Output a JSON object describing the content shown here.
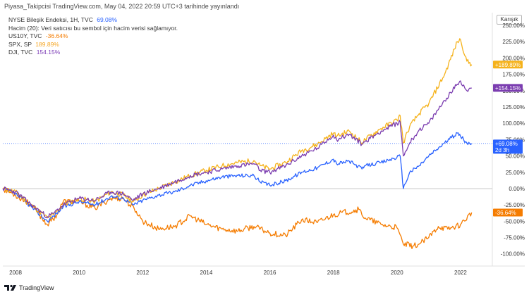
{
  "header": {
    "text": "Piyasa_Takipcisi TradingView.com, May 04, 2022 20:59 UTC+3 tarihinde yayınlandı"
  },
  "legend": {
    "rows": [
      {
        "label": "NYSE Bileşik Endeksi, 1H, TVC",
        "value": "69.08%",
        "color": "#2962ff"
      },
      {
        "label": "Hacim (20): Veri satıcısı bu sembol için hacim verisi sağlamıyor.",
        "value": "",
        "color": "#333333"
      },
      {
        "label": "US10Y, TVC",
        "value": "-36.64%",
        "color": "#f57c00"
      },
      {
        "label": "SPX, SP",
        "value": "189.89%",
        "color": "#f5a623"
      },
      {
        "label": "DJI, TVC",
        "value": "154.15%",
        "color": "#7e3fb8"
      }
    ]
  },
  "scale_mode": "Karışık",
  "footer": {
    "brand": "TradingView"
  },
  "colors": {
    "nya": "#2962ff",
    "us10y": "#f57c00",
    "spx": "#f5b21b",
    "dji": "#7b3db0",
    "zero_line": "#c8c8c8",
    "last_line": "#2962ff"
  },
  "tags": [
    {
      "series": "spx",
      "text": "+189.89%",
      "value": 189.89
    },
    {
      "series": "dji",
      "text": "+154.15%",
      "value": 154.15
    },
    {
      "series": "nya",
      "text": "+69.08%",
      "sub": "2d 3h",
      "value": 69.08
    },
    {
      "series": "us10y",
      "text": "-36.64%",
      "value": -36.64
    }
  ],
  "chart_data": {
    "type": "line",
    "title": "",
    "xlabel": "",
    "ylabel": "",
    "unit": "%",
    "xlim": [
      2007.6,
      2023.0
    ],
    "ylim": [
      -110,
      250
    ],
    "x_ticks": [
      "2008",
      "2010",
      "2012",
      "2014",
      "2016",
      "2018",
      "2020",
      "2022"
    ],
    "y_ticks": [
      "250.00%",
      "225.00%",
      "200.00%",
      "175.00%",
      "150.00%",
      "125.00%",
      "100.00%",
      "75.00%",
      "50.00%",
      "25.00%",
      "0.00%",
      "-25.00%",
      "-50.00%",
      "-75.00%",
      "-100.00%"
    ],
    "y_tick_values": [
      250,
      225,
      200,
      175,
      150,
      125,
      100,
      75,
      50,
      25,
      0,
      -25,
      -50,
      -75,
      -100
    ],
    "series": [
      {
        "key": "spx",
        "name": "SPX, SP",
        "x": [
          2007.6,
          2008.0,
          2008.5,
          2009.0,
          2009.2,
          2009.5,
          2010.0,
          2010.5,
          2011.0,
          2011.4,
          2011.7,
          2012.0,
          2012.5,
          2013.0,
          2013.5,
          2014.0,
          2014.5,
          2015.0,
          2015.5,
          2015.7,
          2016.0,
          2016.5,
          2017.0,
          2017.5,
          2018.0,
          2018.1,
          2018.5,
          2018.9,
          2019.0,
          2019.5,
          2020.0,
          2020.1,
          2020.2,
          2020.4,
          2020.7,
          2021.0,
          2021.5,
          2021.9,
          2022.0,
          2022.2,
          2022.35
        ],
        "y": [
          0,
          -5,
          -25,
          -45,
          -40,
          -25,
          -15,
          -20,
          -5,
          -10,
          -20,
          -10,
          0,
          10,
          20,
          28,
          35,
          40,
          43,
          35,
          30,
          40,
          58,
          68,
          85,
          80,
          88,
          70,
          75,
          92,
          105,
          112,
          70,
          95,
          115,
          130,
          175,
          225,
          228,
          195,
          189.89
        ]
      },
      {
        "key": "dji",
        "name": "DJI, TVC",
        "x": [
          2007.6,
          2008.0,
          2008.5,
          2009.0,
          2009.2,
          2009.5,
          2010.0,
          2010.5,
          2011.0,
          2011.4,
          2011.7,
          2012.0,
          2012.5,
          2013.0,
          2013.5,
          2014.0,
          2014.5,
          2015.0,
          2015.5,
          2015.7,
          2016.0,
          2016.5,
          2017.0,
          2017.5,
          2018.0,
          2018.1,
          2018.5,
          2018.9,
          2019.0,
          2019.5,
          2020.0,
          2020.1,
          2020.2,
          2020.4,
          2020.7,
          2021.0,
          2021.5,
          2021.9,
          2022.0,
          2022.2,
          2022.35
        ],
        "y": [
          0,
          -5,
          -25,
          -43,
          -38,
          -25,
          -15,
          -18,
          -5,
          -8,
          -18,
          -8,
          0,
          10,
          20,
          25,
          30,
          35,
          38,
          28,
          25,
          35,
          50,
          62,
          82,
          75,
          83,
          68,
          72,
          88,
          100,
          102,
          50,
          70,
          90,
          100,
          135,
          160,
          165,
          150,
          154.15
        ]
      },
      {
        "key": "nya",
        "name": "NYSE Bileşik Endeksi, 1H, TVC",
        "x": [
          2007.6,
          2008.0,
          2008.5,
          2009.0,
          2009.2,
          2009.5,
          2010.0,
          2010.5,
          2011.0,
          2011.4,
          2011.7,
          2012.0,
          2012.5,
          2013.0,
          2013.5,
          2014.0,
          2014.5,
          2015.0,
          2015.5,
          2015.7,
          2016.0,
          2016.5,
          2017.0,
          2017.5,
          2018.0,
          2018.1,
          2018.5,
          2018.9,
          2019.0,
          2019.5,
          2020.0,
          2020.1,
          2020.2,
          2020.4,
          2020.7,
          2021.0,
          2021.5,
          2021.9,
          2022.0,
          2022.2,
          2022.35
        ],
        "y": [
          0,
          -8,
          -28,
          -50,
          -42,
          -28,
          -20,
          -25,
          -12,
          -15,
          -25,
          -18,
          -10,
          -5,
          5,
          12,
          18,
          20,
          20,
          10,
          5,
          12,
          25,
          32,
          45,
          38,
          42,
          30,
          35,
          40,
          48,
          50,
          0,
          25,
          35,
          50,
          70,
          85,
          80,
          70,
          69.08
        ]
      },
      {
        "key": "us10y",
        "name": "US10Y, TVC",
        "x": [
          2007.6,
          2008.0,
          2008.5,
          2009.0,
          2009.3,
          2009.5,
          2010.0,
          2010.5,
          2011.0,
          2011.4,
          2011.8,
          2012.0,
          2012.5,
          2013.0,
          2013.5,
          2014.0,
          2014.5,
          2015.0,
          2015.5,
          2016.0,
          2016.5,
          2017.0,
          2017.5,
          2018.0,
          2018.8,
          2019.0,
          2019.5,
          2020.0,
          2020.2,
          2020.5,
          2020.7,
          2021.0,
          2021.3,
          2021.6,
          2022.0,
          2022.35
        ],
        "y": [
          0,
          -10,
          -25,
          -55,
          -40,
          -20,
          -20,
          -30,
          -15,
          -15,
          -35,
          -50,
          -62,
          -58,
          -42,
          -55,
          -62,
          -65,
          -58,
          -68,
          -72,
          -48,
          -52,
          -40,
          -32,
          -45,
          -55,
          -60,
          -85,
          -88,
          -85,
          -75,
          -58,
          -62,
          -55,
          -36.64
        ]
      }
    ]
  }
}
